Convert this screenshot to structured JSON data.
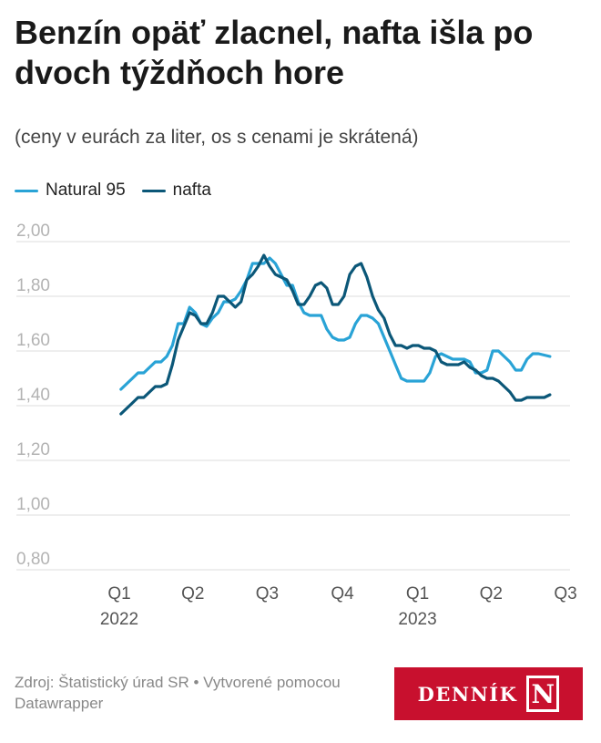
{
  "header": {
    "title": "Benzín opäť zlacnel, nafta išla po dvoch týždňoch hore",
    "subtitle": "(ceny v eurách za liter, os s cenami je skrátená)"
  },
  "footer": {
    "source": "Zdroj: Štatistický úrad SR • Vytvorené pomocou Datawrapper",
    "logo_text": "DENNÍK",
    "logo_letter": "N"
  },
  "colors": {
    "natural95": "#29a3d6",
    "nafta": "#0b5778",
    "logo_bg": "#c8102e",
    "grid": "#dddddd",
    "axis_text": "#b3b3b3",
    "xtick_text": "#555555"
  },
  "chart_data": {
    "type": "line",
    "title": "Benzín opäť zlacnel, nafta išla po dvoch týždňoch hore",
    "subtitle": "(ceny v eurách za liter, os s cenami je skrátená)",
    "legend_position": "top-left",
    "grid": true,
    "ylim": [
      0.8,
      2.0
    ],
    "yticks": [
      "2,00",
      "1,80",
      "1,60",
      "1,40",
      "1,20",
      "1,00",
      "0,80"
    ],
    "ytick_values": [
      2.0,
      1.8,
      1.6,
      1.4,
      1.2,
      1.0,
      0.8
    ],
    "xlim": [
      "2022-01-01",
      "2023-07-01"
    ],
    "xticks": [
      {
        "date": "2022-01-01",
        "line1": "Q1",
        "line2": "2022"
      },
      {
        "date": "2022-04-01",
        "line1": "Q2",
        "line2": ""
      },
      {
        "date": "2022-07-01",
        "line1": "Q3",
        "line2": ""
      },
      {
        "date": "2022-10-01",
        "line1": "Q4",
        "line2": ""
      },
      {
        "date": "2023-01-01",
        "line1": "Q1",
        "line2": "2023"
      },
      {
        "date": "2023-04-01",
        "line1": "Q2",
        "line2": ""
      },
      {
        "date": "2023-07-01",
        "line1": "Q3",
        "line2": ""
      }
    ],
    "series": [
      {
        "name": "Natural 95",
        "color": "#29a3d6",
        "points": [
          [
            "2022-01-03",
            1.46
          ],
          [
            "2022-01-10",
            1.48
          ],
          [
            "2022-01-17",
            1.5
          ],
          [
            "2022-01-24",
            1.52
          ],
          [
            "2022-01-31",
            1.52
          ],
          [
            "2022-02-07",
            1.54
          ],
          [
            "2022-02-14",
            1.56
          ],
          [
            "2022-02-21",
            1.56
          ],
          [
            "2022-02-28",
            1.58
          ],
          [
            "2022-03-07",
            1.62
          ],
          [
            "2022-03-14",
            1.7
          ],
          [
            "2022-03-21",
            1.7
          ],
          [
            "2022-03-28",
            1.76
          ],
          [
            "2022-04-04",
            1.74
          ],
          [
            "2022-04-11",
            1.7
          ],
          [
            "2022-04-18",
            1.69
          ],
          [
            "2022-04-25",
            1.72
          ],
          [
            "2022-05-02",
            1.74
          ],
          [
            "2022-05-09",
            1.78
          ],
          [
            "2022-05-16",
            1.78
          ],
          [
            "2022-05-23",
            1.79
          ],
          [
            "2022-05-30",
            1.82
          ],
          [
            "2022-06-06",
            1.86
          ],
          [
            "2022-06-13",
            1.92
          ],
          [
            "2022-06-20",
            1.92
          ],
          [
            "2022-06-27",
            1.92
          ],
          [
            "2022-07-04",
            1.94
          ],
          [
            "2022-07-11",
            1.92
          ],
          [
            "2022-07-18",
            1.88
          ],
          [
            "2022-07-25",
            1.84
          ],
          [
            "2022-08-01",
            1.84
          ],
          [
            "2022-08-08",
            1.78
          ],
          [
            "2022-08-15",
            1.74
          ],
          [
            "2022-08-22",
            1.73
          ],
          [
            "2022-08-29",
            1.73
          ],
          [
            "2022-09-05",
            1.73
          ],
          [
            "2022-09-12",
            1.68
          ],
          [
            "2022-09-19",
            1.65
          ],
          [
            "2022-09-26",
            1.64
          ],
          [
            "2022-10-03",
            1.64
          ],
          [
            "2022-10-10",
            1.65
          ],
          [
            "2022-10-17",
            1.7
          ],
          [
            "2022-10-24",
            1.73
          ],
          [
            "2022-10-31",
            1.73
          ],
          [
            "2022-11-07",
            1.72
          ],
          [
            "2022-11-14",
            1.7
          ],
          [
            "2022-11-21",
            1.65
          ],
          [
            "2022-11-28",
            1.6
          ],
          [
            "2022-12-05",
            1.55
          ],
          [
            "2022-12-12",
            1.5
          ],
          [
            "2022-12-19",
            1.49
          ],
          [
            "2022-12-26",
            1.49
          ],
          [
            "2023-01-02",
            1.49
          ],
          [
            "2023-01-09",
            1.49
          ],
          [
            "2023-01-16",
            1.52
          ],
          [
            "2023-01-23",
            1.58
          ],
          [
            "2023-01-30",
            1.59
          ],
          [
            "2023-02-06",
            1.58
          ],
          [
            "2023-02-13",
            1.57
          ],
          [
            "2023-02-20",
            1.57
          ],
          [
            "2023-02-27",
            1.57
          ],
          [
            "2023-03-06",
            1.56
          ],
          [
            "2023-03-13",
            1.52
          ],
          [
            "2023-03-20",
            1.52
          ],
          [
            "2023-03-27",
            1.53
          ],
          [
            "2023-04-03",
            1.6
          ],
          [
            "2023-04-10",
            1.6
          ],
          [
            "2023-04-17",
            1.58
          ],
          [
            "2023-04-24",
            1.56
          ],
          [
            "2023-05-01",
            1.53
          ],
          [
            "2023-05-08",
            1.53
          ],
          [
            "2023-05-15",
            1.57
          ],
          [
            "2023-05-22",
            1.59
          ],
          [
            "2023-05-29",
            1.59
          ],
          [
            "2023-06-05",
            1.585
          ],
          [
            "2023-06-12",
            1.58
          ]
        ]
      },
      {
        "name": "nafta",
        "color": "#0b5778",
        "points": [
          [
            "2022-01-03",
            1.37
          ],
          [
            "2022-01-10",
            1.39
          ],
          [
            "2022-01-17",
            1.41
          ],
          [
            "2022-01-24",
            1.43
          ],
          [
            "2022-01-31",
            1.43
          ],
          [
            "2022-02-07",
            1.45
          ],
          [
            "2022-02-14",
            1.47
          ],
          [
            "2022-02-21",
            1.47
          ],
          [
            "2022-02-28",
            1.48
          ],
          [
            "2022-03-07",
            1.55
          ],
          [
            "2022-03-14",
            1.64
          ],
          [
            "2022-03-21",
            1.69
          ],
          [
            "2022-03-28",
            1.74
          ],
          [
            "2022-04-04",
            1.73
          ],
          [
            "2022-04-11",
            1.7
          ],
          [
            "2022-04-18",
            1.7
          ],
          [
            "2022-04-25",
            1.74
          ],
          [
            "2022-05-02",
            1.8
          ],
          [
            "2022-05-09",
            1.8
          ],
          [
            "2022-05-16",
            1.78
          ],
          [
            "2022-05-23",
            1.76
          ],
          [
            "2022-05-30",
            1.78
          ],
          [
            "2022-06-06",
            1.86
          ],
          [
            "2022-06-13",
            1.88
          ],
          [
            "2022-06-20",
            1.91
          ],
          [
            "2022-06-27",
            1.95
          ],
          [
            "2022-07-04",
            1.91
          ],
          [
            "2022-07-11",
            1.88
          ],
          [
            "2022-07-18",
            1.87
          ],
          [
            "2022-07-25",
            1.86
          ],
          [
            "2022-08-01",
            1.82
          ],
          [
            "2022-08-08",
            1.77
          ],
          [
            "2022-08-15",
            1.77
          ],
          [
            "2022-08-22",
            1.8
          ],
          [
            "2022-08-29",
            1.84
          ],
          [
            "2022-09-05",
            1.85
          ],
          [
            "2022-09-12",
            1.83
          ],
          [
            "2022-09-19",
            1.77
          ],
          [
            "2022-09-26",
            1.77
          ],
          [
            "2022-10-03",
            1.8
          ],
          [
            "2022-10-10",
            1.88
          ],
          [
            "2022-10-17",
            1.91
          ],
          [
            "2022-10-24",
            1.92
          ],
          [
            "2022-10-31",
            1.87
          ],
          [
            "2022-11-07",
            1.8
          ],
          [
            "2022-11-14",
            1.75
          ],
          [
            "2022-11-21",
            1.72
          ],
          [
            "2022-11-28",
            1.66
          ],
          [
            "2022-12-05",
            1.62
          ],
          [
            "2022-12-12",
            1.62
          ],
          [
            "2022-12-19",
            1.61
          ],
          [
            "2022-12-26",
            1.62
          ],
          [
            "2023-01-02",
            1.62
          ],
          [
            "2023-01-09",
            1.61
          ],
          [
            "2023-01-16",
            1.61
          ],
          [
            "2023-01-23",
            1.6
          ],
          [
            "2023-01-30",
            1.56
          ],
          [
            "2023-02-06",
            1.55
          ],
          [
            "2023-02-13",
            1.55
          ],
          [
            "2023-02-20",
            1.55
          ],
          [
            "2023-02-27",
            1.56
          ],
          [
            "2023-03-06",
            1.54
          ],
          [
            "2023-03-13",
            1.53
          ],
          [
            "2023-03-20",
            1.51
          ],
          [
            "2023-03-27",
            1.5
          ],
          [
            "2023-04-03",
            1.5
          ],
          [
            "2023-04-10",
            1.49
          ],
          [
            "2023-04-17",
            1.47
          ],
          [
            "2023-04-24",
            1.45
          ],
          [
            "2023-05-01",
            1.42
          ],
          [
            "2023-05-08",
            1.42
          ],
          [
            "2023-05-15",
            1.43
          ],
          [
            "2023-05-22",
            1.43
          ],
          [
            "2023-05-29",
            1.43
          ],
          [
            "2023-06-05",
            1.43
          ],
          [
            "2023-06-12",
            1.44
          ]
        ]
      }
    ]
  }
}
